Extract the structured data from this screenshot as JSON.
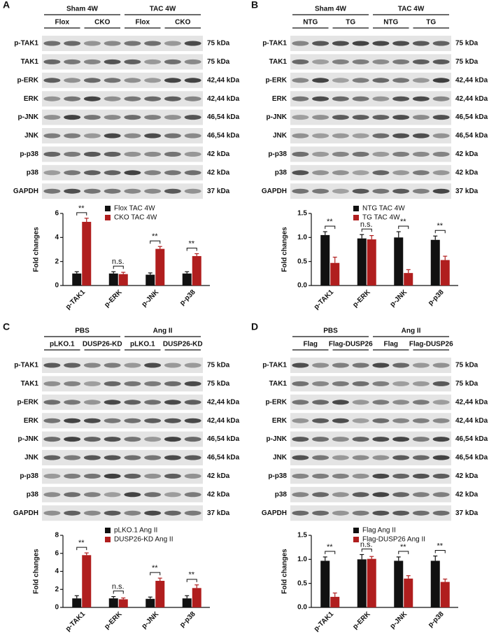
{
  "panels": [
    {
      "letter": "A",
      "groups": [
        {
          "label": "Sham 4W",
          "subs": [
            "Flox",
            "CKO"
          ]
        },
        {
          "label": "TAC 4W",
          "subs": [
            "Flox",
            "CKO"
          ]
        }
      ],
      "rows": [
        {
          "protein": "p-TAK1",
          "size": "75 kDa"
        },
        {
          "protein": "TAK1",
          "size": "75 kDa"
        },
        {
          "protein": "p-ERK",
          "size": "42,44 kDa"
        },
        {
          "protein": "ERK",
          "size": "42,44 kDa"
        },
        {
          "protein": "p-JNK",
          "size": "46,54 kDa"
        },
        {
          "protein": "JNK",
          "size": "46,54 kDa"
        },
        {
          "protein": "p-p38",
          "size": "42 kDa"
        },
        {
          "protein": "p38",
          "size": "42 kDa"
        },
        {
          "protein": "GAPDH",
          "size": "37 kDa"
        }
      ]
    },
    {
      "letter": "B",
      "groups": [
        {
          "label": "Sham 4W",
          "subs": [
            "NTG",
            "TG"
          ]
        },
        {
          "label": "TAC 4W",
          "subs": [
            "NTG",
            "TG"
          ]
        }
      ],
      "rows": [
        {
          "protein": "p-TAK1",
          "size": "75 kDa"
        },
        {
          "protein": "TAK1",
          "size": "75 kDa"
        },
        {
          "protein": "p-ERK",
          "size": "42,44 kDa"
        },
        {
          "protein": "ERK",
          "size": "42,44 kDa"
        },
        {
          "protein": "p-JNK",
          "size": "46,54 kDa"
        },
        {
          "protein": "JNK",
          "size": "46,54 kDa"
        },
        {
          "protein": "p-p38",
          "size": "42 kDa"
        },
        {
          "protein": "p38",
          "size": "42 kDa"
        },
        {
          "protein": "GAPDH",
          "size": "37 kDa"
        }
      ]
    },
    {
      "letter": "C",
      "groups": [
        {
          "label": "PBS",
          "subs": [
            "pLKO.1",
            "DUSP26-KD"
          ]
        },
        {
          "label": "Ang II",
          "subs": [
            "pLKO.1",
            "DUSP26-KD"
          ]
        }
      ],
      "rows": [
        {
          "protein": "p-TAK1",
          "size": "75 kDa"
        },
        {
          "protein": "TAK1",
          "size": "75 kDa"
        },
        {
          "protein": "p-ERK",
          "size": "42,44 kDa"
        },
        {
          "protein": "ERK",
          "size": "42,44 kDa"
        },
        {
          "protein": "p-JNK",
          "size": "46,54 kDa"
        },
        {
          "protein": "JNK",
          "size": "46,54 kDa"
        },
        {
          "protein": "p-p38",
          "size": "42 kDa"
        },
        {
          "protein": "p38",
          "size": "42 kDa"
        },
        {
          "protein": "GAPDH",
          "size": "37 kDa"
        }
      ]
    },
    {
      "letter": "D",
      "groups": [
        {
          "label": "PBS",
          "subs": [
            "Flag",
            "Flag-DUSP26"
          ]
        },
        {
          "label": "Ang II",
          "subs": [
            "Flag",
            "Flag-DUSP26"
          ]
        }
      ],
      "rows": [
        {
          "protein": "p-TAK1",
          "size": "75 kDa"
        },
        {
          "protein": "TAK1",
          "size": "75 kDa"
        },
        {
          "protein": "p-ERK",
          "size": "42,44 kDa"
        },
        {
          "protein": "ERK",
          "size": "42,44 kDa"
        },
        {
          "protein": "p-JNK",
          "size": "46,54 kDa"
        },
        {
          "protein": "JNK",
          "size": "46,54 kDa"
        },
        {
          "protein": "p-p38",
          "size": "42 kDa"
        },
        {
          "protein": "p38",
          "size": "42 kDa"
        },
        {
          "protein": "GAPDH",
          "size": "37 kDa"
        }
      ]
    }
  ],
  "chart_data": [
    {
      "type": "bar",
      "y_label": "Fold changes",
      "categories": [
        "p-TAK1",
        "p-ERK",
        "p-JNK",
        "p-p38"
      ],
      "series": [
        {
          "name": "Flox TAC 4W",
          "color": "#111111",
          "values": [
            1,
            1,
            0.9,
            1
          ],
          "errors": [
            0.15,
            0.15,
            0.15,
            0.15
          ]
        },
        {
          "name": "CKO TAC 4W",
          "color": "#b01e1e",
          "values": [
            5.3,
            0.95,
            3.05,
            2.45
          ],
          "errors": [
            0.3,
            0.15,
            0.2,
            0.2
          ]
        }
      ],
      "annotations": [
        "**",
        "n.s.",
        "**",
        "**"
      ],
      "ylim": [
        0,
        6
      ],
      "yticks": [
        0,
        2,
        4,
        6
      ]
    },
    {
      "type": "bar",
      "y_label": "Fold changes",
      "categories": [
        "p-TAK1",
        "p-ERK",
        "p-JNK",
        "p-p38"
      ],
      "series": [
        {
          "name": "NTG TAC 4W",
          "color": "#111111",
          "values": [
            1.05,
            0.98,
            1.0,
            0.95
          ],
          "errors": [
            0.07,
            0.08,
            0.12,
            0.08
          ]
        },
        {
          "name": "TG TAC 4W",
          "color": "#b01e1e",
          "values": [
            0.47,
            0.96,
            0.26,
            0.53
          ],
          "errors": [
            0.12,
            0.08,
            0.07,
            0.08
          ]
        }
      ],
      "annotations": [
        "**",
        "n.s.",
        "**",
        "**"
      ],
      "ylim": [
        0,
        1.5
      ],
      "yticks": [
        {
          "value": 0,
          "label": "0.0"
        },
        0.5,
        {
          "value": 1,
          "label": "1.0"
        },
        1.5
      ]
    },
    {
      "type": "bar",
      "y_label": "Fold changes",
      "categories": [
        "p-TAK1",
        "p-ERK",
        "p-JNK",
        "p-p38"
      ],
      "series": [
        {
          "name": "pLKO.1 Ang II",
          "color": "#111111",
          "values": [
            1,
            1,
            0.95,
            1
          ],
          "errors": [
            0.3,
            0.2,
            0.2,
            0.3
          ]
        },
        {
          "name": "DUSP26-KD Ang II",
          "color": "#b01e1e",
          "values": [
            5.8,
            0.9,
            2.95,
            2.15
          ],
          "errors": [
            0.25,
            0.15,
            0.3,
            0.35
          ]
        }
      ],
      "annotations": [
        "**",
        "n.s.",
        "**",
        "**"
      ],
      "ylim": [
        0,
        8
      ],
      "yticks": [
        0,
        2,
        4,
        6,
        8
      ]
    },
    {
      "type": "bar",
      "y_label": "Fold changes",
      "categories": [
        "p-TAK1",
        "p-ERK",
        "p-JNK",
        "p-p38"
      ],
      "series": [
        {
          "name": "Flag Ang II",
          "color": "#111111",
          "values": [
            0.97,
            1.0,
            0.97,
            0.97
          ],
          "errors": [
            0.08,
            0.1,
            0.08,
            0.1
          ]
        },
        {
          "name": "Flag-DUSP26 Ang II",
          "color": "#b01e1e",
          "values": [
            0.22,
            1.01,
            0.6,
            0.53
          ],
          "errors": [
            0.08,
            0.05,
            0.06,
            0.06
          ]
        }
      ],
      "annotations": [
        "**",
        "n.s.",
        "**",
        "**"
      ],
      "ylim": [
        0,
        1.5
      ],
      "yticks": [
        {
          "value": 0,
          "label": "0.0"
        },
        0.5,
        {
          "value": 1,
          "label": "1.0"
        },
        1.5
      ]
    }
  ]
}
